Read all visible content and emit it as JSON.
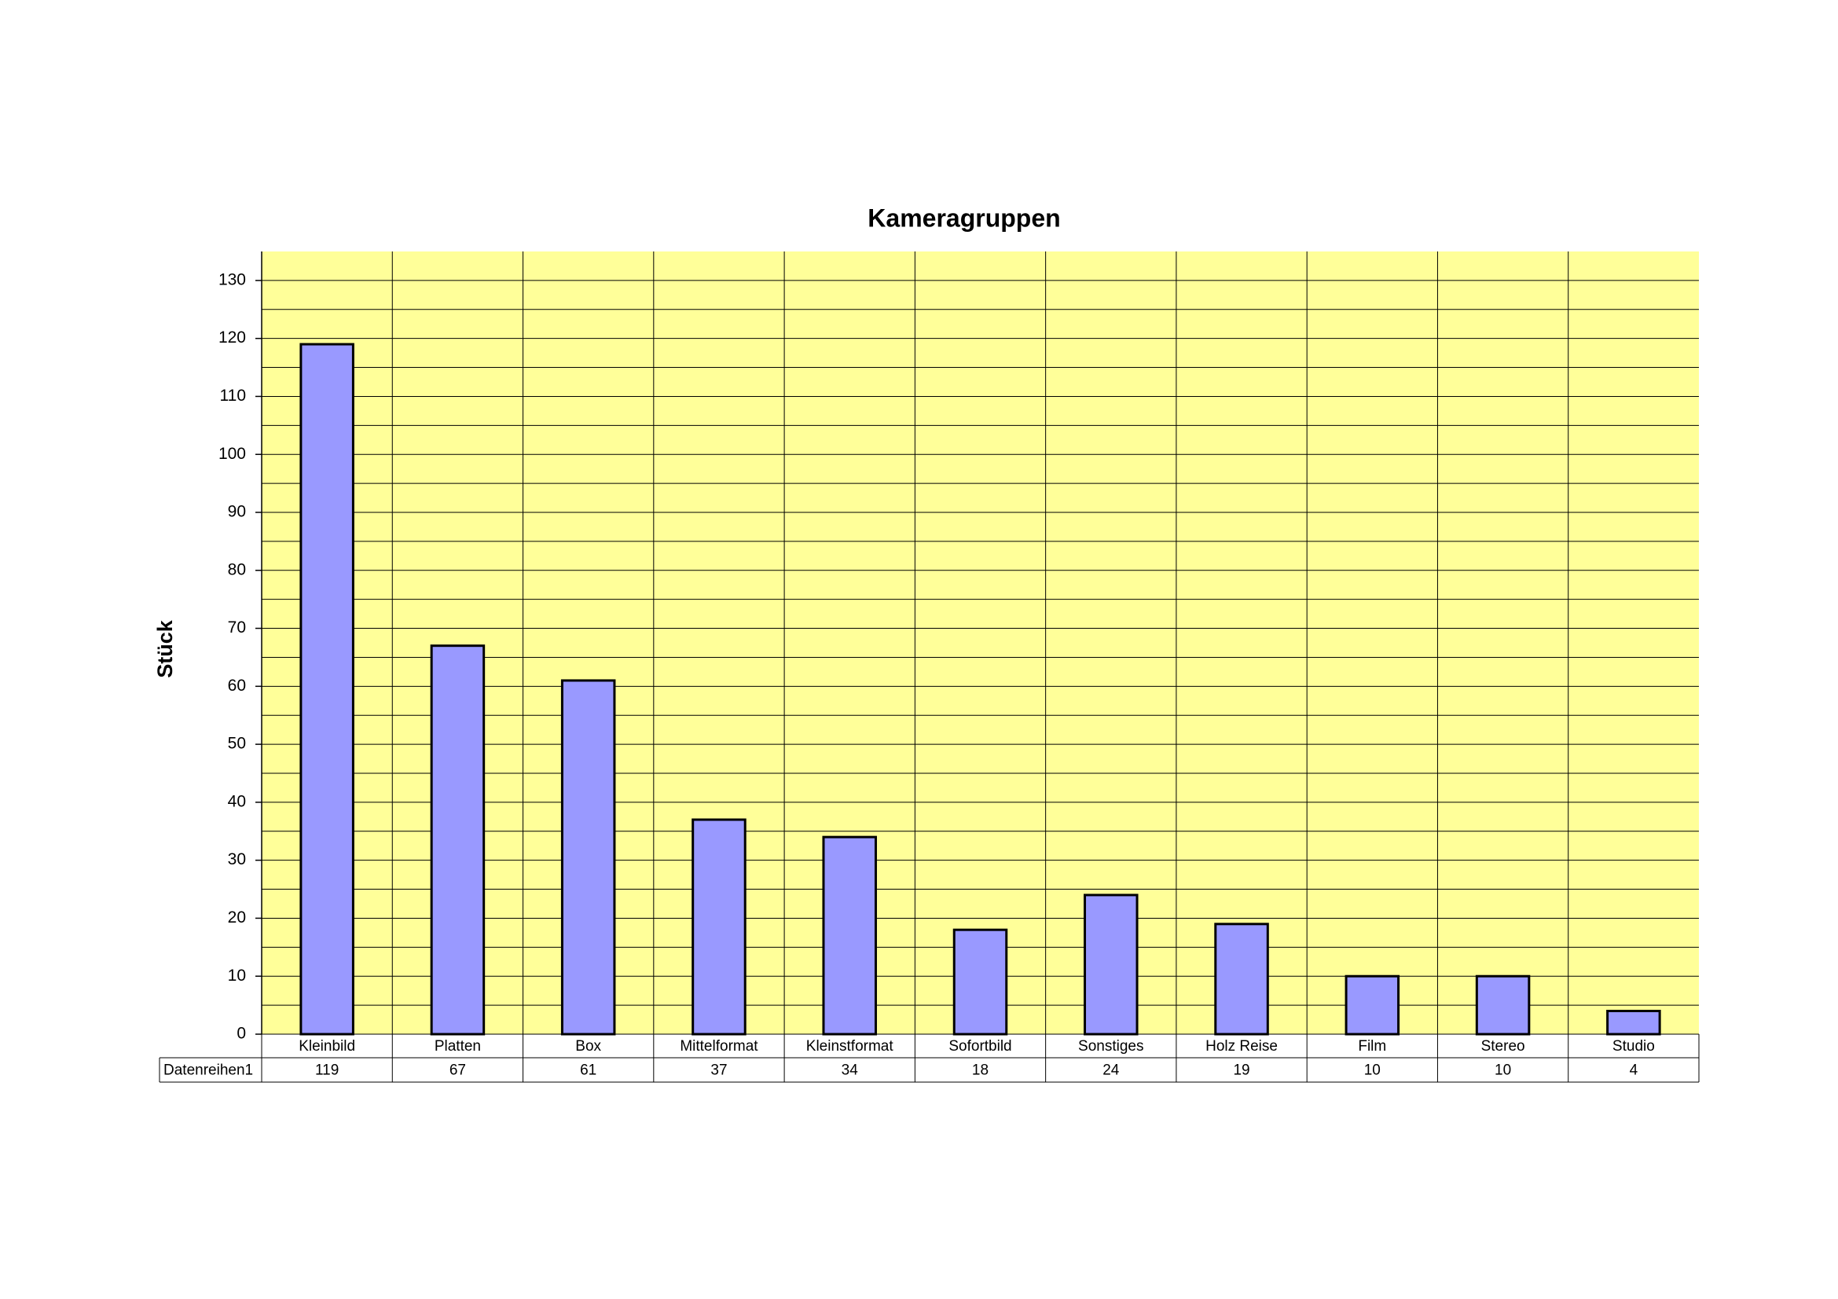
{
  "chart_data": {
    "type": "bar",
    "title": "Kameragruppen",
    "y_label": "Stück",
    "categories": [
      "Kleinbild",
      "Platten",
      "Box",
      "Mittelformat",
      "Kleinstformat",
      "Sofortbild",
      "Sonstiges",
      "Holz Reise",
      "Film",
      "Stereo",
      "Studio"
    ],
    "series": [
      {
        "name": "Datenreihen1",
        "color": "#9999ff",
        "values": [
          119,
          67,
          61,
          37,
          34,
          18,
          24,
          19,
          10,
          10,
          4
        ]
      }
    ],
    "ylim": [
      0,
      135
    ],
    "yticks": [
      0,
      10,
      20,
      30,
      40,
      50,
      60,
      70,
      80,
      90,
      100,
      110,
      120,
      130
    ],
    "grid": true,
    "minor_grid": true,
    "plot_background": "#ffff99",
    "data_table": true
  }
}
